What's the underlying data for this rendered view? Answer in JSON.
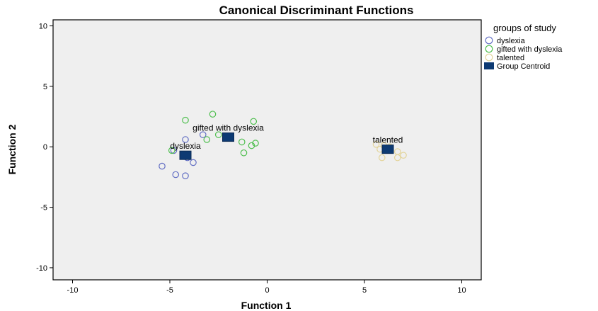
{
  "chart_data": {
    "type": "scatter",
    "title": "Canonical Discriminant Functions",
    "xlabel": "Function 1",
    "ylabel": "Function 2",
    "xlim": [
      -11,
      11
    ],
    "ylim": [
      -11,
      10.5
    ],
    "xticks": [
      -10,
      -5,
      0,
      5,
      10
    ],
    "yticks": [
      10,
      5,
      0,
      -5,
      -10
    ],
    "xtick_labels": [
      "-10",
      "-5",
      "0",
      "5",
      "10"
    ],
    "ytick_labels": [
      "10",
      "5",
      "0",
      "-5",
      "-10"
    ],
    "grid": false,
    "legend_position": "top-right",
    "legend_title": "groups of study",
    "background_color": "#efefef",
    "series": [
      {
        "name": "dyslexia",
        "color": "#6470c4",
        "marker": "circle-open",
        "points": [
          [
            -5.4,
            -1.6
          ],
          [
            -4.7,
            -2.3
          ],
          [
            -4.2,
            -2.4
          ],
          [
            -4.1,
            -0.9
          ],
          [
            -3.8,
            -1.3
          ],
          [
            -4.2,
            0.6
          ],
          [
            -3.3,
            1.0
          ],
          [
            -4.8,
            -0.3
          ]
        ]
      },
      {
        "name": "gifted with dyslexia",
        "color": "#4fbf4f",
        "marker": "circle-open",
        "points": [
          [
            -4.2,
            2.2
          ],
          [
            -2.8,
            2.7
          ],
          [
            -0.7,
            2.1
          ],
          [
            -1.3,
            0.4
          ],
          [
            -0.6,
            0.3
          ],
          [
            -0.8,
            0.1
          ],
          [
            -1.2,
            -0.5
          ],
          [
            -3.1,
            0.6
          ],
          [
            -2.5,
            1.0
          ],
          [
            -4.9,
            -0.3
          ]
        ]
      },
      {
        "name": "talented",
        "color": "#e3d49a",
        "marker": "circle-open",
        "points": [
          [
            5.6,
            0.2
          ],
          [
            6.0,
            0.1
          ],
          [
            5.8,
            -0.2
          ],
          [
            6.7,
            -0.4
          ],
          [
            7.0,
            -0.7
          ],
          [
            5.9,
            -0.9
          ],
          [
            6.7,
            -0.9
          ],
          [
            6.3,
            0.0
          ]
        ]
      }
    ],
    "centroids": {
      "name": "Group Centroid",
      "color": "#0d3a73",
      "marker": "square",
      "points": [
        {
          "group": "dyslexia",
          "label": "dyslexia",
          "x": -4.2,
          "y": -0.7
        },
        {
          "group": "gifted with dyslexia",
          "label": "gifted with dyslexia",
          "x": -2.0,
          "y": 0.8
        },
        {
          "group": "talented",
          "label": "talented",
          "x": 6.2,
          "y": -0.2
        }
      ]
    }
  }
}
